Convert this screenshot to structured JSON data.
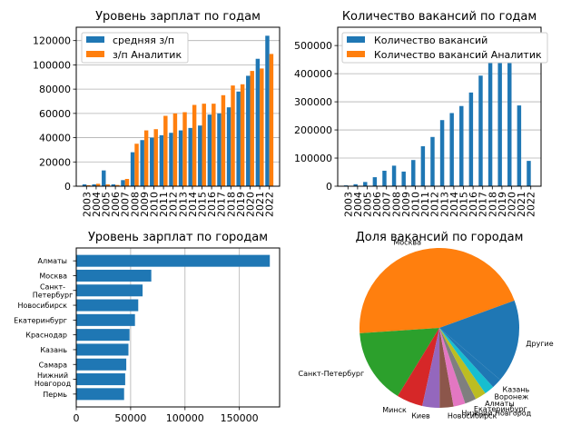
{
  "chart_data": [
    {
      "type": "bar",
      "title": "Уровень зарплат по годам",
      "categories": [
        "2003",
        "2004",
        "2005",
        "2006",
        "2007",
        "2008",
        "2009",
        "2010",
        "2011",
        "2012",
        "2013",
        "2014",
        "2015",
        "2016",
        "2017",
        "2018",
        "2019",
        "2020",
        "2021",
        "2022"
      ],
      "series": [
        {
          "name": "средняя з/п",
          "color": "#1f77b4",
          "values": [
            1500,
            1500,
            13000,
            1500,
            5000,
            28000,
            38000,
            40000,
            42000,
            44000,
            46000,
            48000,
            50000,
            59000,
            60000,
            65000,
            78000,
            91000,
            105000,
            124000
          ]
        },
        {
          "name": "з/п Аналитик",
          "color": "#ff7f0e",
          "values": [
            800,
            2000,
            1500,
            1000,
            6000,
            35000,
            46000,
            47000,
            58000,
            60000,
            61000,
            67000,
            68000,
            68000,
            75000,
            83000,
            84000,
            95000,
            97000,
            109000
          ]
        }
      ],
      "yticks": [
        0,
        20000,
        40000,
        60000,
        80000,
        100000,
        120000
      ],
      "ylim": [
        0,
        131000
      ],
      "grid_y": true,
      "legend": "top-left"
    },
    {
      "type": "bar",
      "title": "Количество вакансий по годам",
      "categories": [
        "2003",
        "2004",
        "2005",
        "2006",
        "2007",
        "2008",
        "2009",
        "2010",
        "2011",
        "2012",
        "2013",
        "2014",
        "2015",
        "2016",
        "2017",
        "2018",
        "2019",
        "2020",
        "2021",
        "2022"
      ],
      "series": [
        {
          "name": "Количество вакансий",
          "color": "#1f77b4",
          "values": [
            3000,
            7000,
            15000,
            32000,
            55000,
            73000,
            52000,
            93000,
            142000,
            175000,
            235000,
            260000,
            285000,
            333000,
            393000,
            527000,
            537000,
            490000,
            287000,
            90000
          ]
        },
        {
          "name": "Количество вакансий Аналитик",
          "color": "#ff7f0e",
          "values": [
            0,
            0,
            0,
            0,
            0,
            0,
            0,
            0,
            0,
            0,
            0,
            0,
            0,
            0,
            0,
            0,
            0,
            0,
            0,
            0
          ]
        }
      ],
      "yticks": [
        0,
        100000,
        200000,
        300000,
        400000,
        500000
      ],
      "ylim": [
        0,
        565000
      ],
      "grid_y": true,
      "legend": "top-left"
    },
    {
      "type": "bar",
      "orientation": "horizontal",
      "title": "Уровень зарплат по городам",
      "categories": [
        "Алматы",
        "Москва",
        "Санкт-\nПетербург",
        "Новосибирск",
        "Екатеринбург",
        "Краснодар",
        "Казань",
        "Самара",
        "Нижний\nНовгород",
        "Пермь"
      ],
      "values": [
        178000,
        69000,
        61000,
        57000,
        54000,
        49000,
        48000,
        46000,
        45000,
        44000
      ],
      "color": "#1f77b4",
      "xticks": [
        0,
        50000,
        100000,
        150000
      ],
      "xlim": [
        0,
        187000
      ],
      "grid_x": true
    },
    {
      "type": "pie",
      "title": "Доля вакансий по городам",
      "labels": [
        "Москва",
        "Санкт-Петербург",
        "Минск",
        "Киев",
        "Новосибирск",
        "Нижний Новгород",
        "Екатеринбург",
        "Алматы",
        "Воронеж",
        "Казань",
        "Другие"
      ],
      "values": [
        45.5,
        15.2,
        5.3,
        3.5,
        2.8,
        2.4,
        2.3,
        2.2,
        2.0,
        2.0,
        16.8
      ],
      "colors": [
        "#ff7f0e",
        "#2ca02c",
        "#d62728",
        "#9467bd",
        "#8c564b",
        "#e377c2",
        "#7f7f7f",
        "#bcbd22",
        "#17becf",
        "#1f77b4",
        "#1f77b4"
      ],
      "start_angle_deg": 20
    }
  ]
}
